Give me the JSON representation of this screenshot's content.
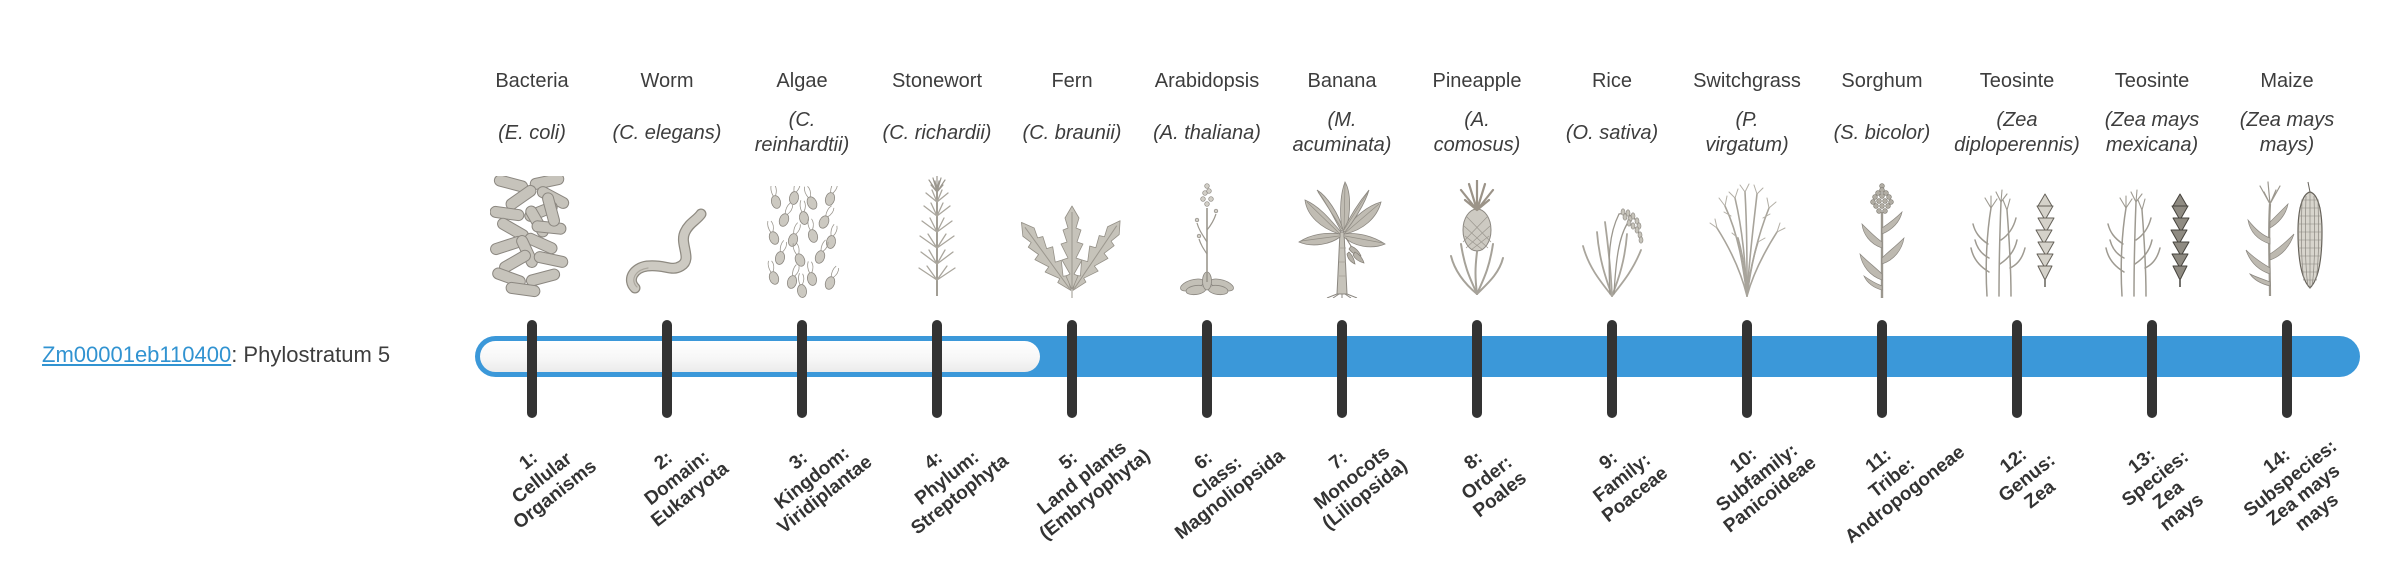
{
  "gene": {
    "id": "Zm00001eb110400",
    "suffix": ": Phylostratum 5",
    "phylostratum": 5
  },
  "colors": {
    "bar_fill": "#3b98d9",
    "bar_unfilled": "#f7f7f7",
    "tick": "#333333",
    "link_blue": "#3193d1",
    "heading_text": "#3d3d3d",
    "stratum_text": "#333333",
    "illustration_gray": "#c6c3ba"
  },
  "organisms": [
    {
      "name": "Bacteria",
      "species_lines": [
        "(E. coli)"
      ],
      "icon": "bacteria-icon",
      "stratum_lines": [
        "1:",
        "Cellular",
        "Organisms"
      ]
    },
    {
      "name": "Worm",
      "species_lines": [
        "(C. elegans)"
      ],
      "icon": "worm-icon",
      "stratum_lines": [
        "2:",
        "Domain:",
        "Eukaryota"
      ]
    },
    {
      "name": "Algae",
      "species_lines": [
        "(C.",
        "reinhardtii)"
      ],
      "icon": "algae-icon",
      "stratum_lines": [
        "3:",
        "Kingdom:",
        "Viridiplantae"
      ]
    },
    {
      "name": "Stonewort",
      "species_lines": [
        "(C. richardii)"
      ],
      "icon": "stonewort-icon",
      "stratum_lines": [
        "4:",
        "Phylum:",
        "Streptophyta"
      ]
    },
    {
      "name": "Fern",
      "species_lines": [
        "(C. braunii)"
      ],
      "icon": "fern-icon",
      "stratum_lines": [
        "5:",
        "Land plants",
        "(Embryophyta)"
      ]
    },
    {
      "name": "Arabidopsis",
      "species_lines": [
        "(A. thaliana)"
      ],
      "icon": "arabidopsis-icon",
      "stratum_lines": [
        "6:",
        "Class:",
        "Magnoliopsida"
      ]
    },
    {
      "name": "Banana",
      "species_lines": [
        "(M.",
        "acuminata)"
      ],
      "icon": "banana-icon",
      "stratum_lines": [
        "7:",
        "Monocots",
        "(Liliopsida)"
      ]
    },
    {
      "name": "Pineapple",
      "species_lines": [
        "(A.",
        "comosus)"
      ],
      "icon": "pineapple-icon",
      "stratum_lines": [
        "8:",
        "Order:",
        "Poales"
      ]
    },
    {
      "name": "Rice",
      "species_lines": [
        "(O. sativa)"
      ],
      "icon": "rice-icon",
      "stratum_lines": [
        "9:",
        "Family:",
        "Poaceae"
      ]
    },
    {
      "name": "Switchgrass",
      "species_lines": [
        "(P.",
        "virgatum)"
      ],
      "icon": "switchgrass-icon",
      "stratum_lines": [
        "10:",
        "Subfamily:",
        "Panicoideae"
      ]
    },
    {
      "name": "Sorghum",
      "species_lines": [
        "(S. bicolor)"
      ],
      "icon": "sorghum-icon",
      "stratum_lines": [
        "11:",
        "Tribe:",
        "Andropogoneae"
      ]
    },
    {
      "name": "Teosinte",
      "species_lines": [
        "(Zea",
        "diploperennis)"
      ],
      "icon": "teosinte-diploperennis-icon",
      "stratum_lines": [
        "12:",
        "Genus:",
        "Zea"
      ]
    },
    {
      "name": "Teosinte",
      "species_lines": [
        "(Zea mays",
        "mexicana)"
      ],
      "icon": "teosinte-mexicana-icon",
      "stratum_lines": [
        "13:",
        "Species:",
        "Zea",
        "mays"
      ]
    },
    {
      "name": "Maize",
      "species_lines": [
        "(Zea mays",
        "mays)"
      ],
      "icon": "maize-icon",
      "stratum_lines": [
        "14:",
        "Subspecies:",
        "Zea mays",
        "mays"
      ]
    }
  ],
  "chart_data": {
    "type": "bar",
    "title": "Zm00001eb110400: Phylostratum 5",
    "gene": "Zm00001eb110400",
    "phylostratum": 5,
    "n_strata": 14,
    "categories": [
      "1: Cellular Organisms",
      "2: Domain: Eukaryota",
      "3: Kingdom: Viridiplantae",
      "4: Phylum: Streptophyta",
      "5: Land plants (Embryophyta)",
      "6: Class: Magnoliopsida",
      "7: Monocots (Liliopsida)",
      "8: Order: Poales",
      "9: Family: Poaceae",
      "10: Subfamily: Panicoideae",
      "11: Tribe: Andropogoneae",
      "12: Genus: Zea",
      "13: Species: Zea mays",
      "14: Subspecies: Zea mays mays"
    ],
    "representatives": [
      "Bacteria (E. coli)",
      "Worm (C. elegans)",
      "Algae (C. reinhardtii)",
      "Stonewort (C. richardii)",
      "Fern (C. braunii)",
      "Arabidopsis (A. thaliana)",
      "Banana (M. acuminata)",
      "Pineapple (A. comosus)",
      "Rice (O. sativa)",
      "Switchgrass (P. virgatum)",
      "Sorghum (S. bicolor)",
      "Teosinte (Zea diploperennis)",
      "Teosinte (Zea mays mexicana)",
      "Maize (Zea mays mays)"
    ],
    "values": [
      0,
      0,
      0,
      0,
      1,
      1,
      1,
      1,
      1,
      1,
      1,
      1,
      1,
      1
    ],
    "value_meaning": "1 = filled blue segment (stratum 5 through 14, the gene's phylostratum span); 0 = unfilled outline segment (strata 1-4)",
    "legend_position": "none",
    "grid": false
  }
}
